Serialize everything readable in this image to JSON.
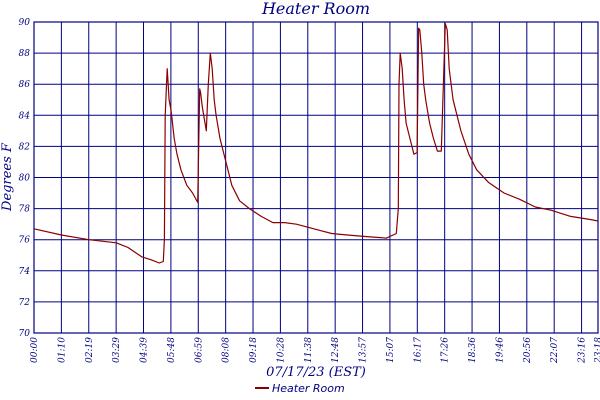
{
  "chart_data": {
    "type": "line",
    "title": "Heater Room",
    "xlabel": "07/17/23 (EST)",
    "ylabel": "Degrees F",
    "ylim": [
      70,
      90
    ],
    "yticks": [
      "70",
      "72",
      "74",
      "76",
      "78",
      "80",
      "82",
      "84",
      "86",
      "88",
      "90"
    ],
    "xlim": [
      0,
      1440
    ],
    "xticks": [
      "00:00",
      "01:10",
      "02:19",
      "03:29",
      "04:39",
      "05:48",
      "06:59",
      "08:08",
      "09:18",
      "10:28",
      "11:38",
      "12:48",
      "13:57",
      "15:07",
      "16:17",
      "17:26",
      "18:36",
      "19:46",
      "20:56",
      "22:07",
      "23:16",
      "23:18"
    ],
    "grid": true,
    "legend_position": "bottom-center",
    "series": [
      {
        "name": "Heater Room",
        "color": "#8b0000",
        "x": [
          0,
          70,
          140,
          210,
          240,
          275,
          300,
          320,
          330,
          333,
          335,
          340,
          345,
          350,
          358,
          365,
          375,
          390,
          405,
          418,
          423,
          425,
          430,
          440,
          445,
          450,
          455,
          460,
          465,
          475,
          490,
          505,
          525,
          550,
          580,
          610,
          640,
          670,
          700,
          730,
          760,
          800,
          850,
          900,
          925,
          930,
          932,
          935,
          940,
          945,
          950,
          960,
          970,
          978,
          982,
          985,
          990,
          995,
          1000,
          1010,
          1020,
          1030,
          1040,
          1050,
          1055,
          1060,
          1065,
          1070,
          1080,
          1090,
          1110,
          1130,
          1160,
          1200,
          1240,
          1280,
          1320,
          1370,
          1420,
          1440
        ],
        "y": [
          76.7,
          76.3,
          76.0,
          75.8,
          75.5,
          74.9,
          74.7,
          74.5,
          74.6,
          76.0,
          84.0,
          87.0,
          85.0,
          84.3,
          82.5,
          81.5,
          80.5,
          79.5,
          79.0,
          78.4,
          85.7,
          85.5,
          84.5,
          83.0,
          86.0,
          88.0,
          87.0,
          85.0,
          84.0,
          82.5,
          81.0,
          79.5,
          78.5,
          78.0,
          77.5,
          77.1,
          77.1,
          77.0,
          76.8,
          76.6,
          76.4,
          76.3,
          76.2,
          76.1,
          76.4,
          78.0,
          86.0,
          88.0,
          87.0,
          85.0,
          83.5,
          82.5,
          81.5,
          81.6,
          89.6,
          89.5,
          88.0,
          86.0,
          85.0,
          83.5,
          82.5,
          81.7,
          81.7,
          89.9,
          89.5,
          87.0,
          86.0,
          85.0,
          84.0,
          83.0,
          81.5,
          80.5,
          79.7,
          79.0,
          78.6,
          78.1,
          77.9,
          77.5,
          77.3,
          77.2
        ]
      }
    ]
  }
}
